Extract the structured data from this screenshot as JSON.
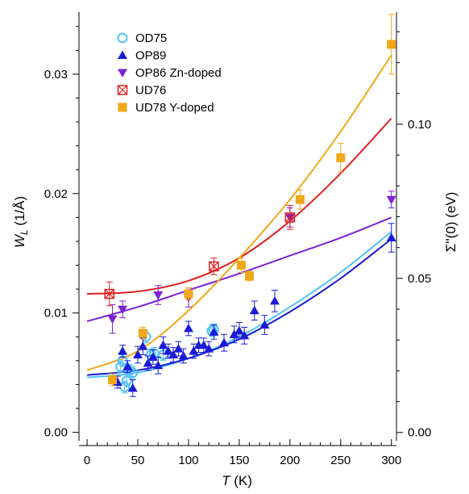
{
  "chart_data": {
    "type": "scatter",
    "xlabel": "T (K)",
    "ylabel": "W_L (1/Å)",
    "ylabel_right": "Σ''(0) (eV)",
    "xlim": [
      -8,
      305
    ],
    "ylim": [
      -0.0005,
      0.0352
    ],
    "ylim_right": [
      -0.0019,
      0.1364
    ],
    "xticks": [
      0,
      50,
      100,
      150,
      200,
      250,
      300
    ],
    "yticks": [
      0.0,
      0.01,
      0.02,
      0.03
    ],
    "yticks_right": [
      0.0,
      0.05,
      0.1
    ],
    "xtick_labels": [
      "0",
      "50",
      "100",
      "150",
      "200",
      "250",
      "300"
    ],
    "ytick_labels": [
      "0.00",
      "0.01",
      "0.02",
      "0.03"
    ],
    "ytick_labels_right": [
      "0.00",
      "0.05",
      "0.10"
    ],
    "grid": false,
    "legend_position": "top-left",
    "series": [
      {
        "name": "OD75",
        "marker": "circle-open",
        "color": "#4fc3f7",
        "x": [
          33,
          35,
          37,
          39,
          42,
          45,
          58,
          63,
          66,
          75,
          123,
          125
        ],
        "y": [
          0.0055,
          0.006,
          0.0038,
          0.0043,
          0.0052,
          0.005,
          0.008,
          0.0065,
          0.0066,
          0.0065,
          0.0085,
          0.0086
        ],
        "err": [
          0.0005,
          0.0005,
          0.0005,
          0.0005,
          0.0005,
          0.0005,
          0.0005,
          0.0005,
          0.0005,
          0.0005,
          0.0005,
          0.0005
        ]
      },
      {
        "name": "OP89",
        "marker": "triangle-up",
        "color": "#1a1ad6",
        "x": [
          30,
          35,
          40,
          45,
          50,
          55,
          60,
          65,
          70,
          75,
          80,
          85,
          90,
          95,
          100,
          105,
          110,
          115,
          120,
          125,
          135,
          145,
          150,
          155,
          165,
          175,
          185,
          300
        ],
        "y": [
          0.0042,
          0.0068,
          0.0055,
          0.0037,
          0.0065,
          0.0072,
          0.0058,
          0.0063,
          0.0056,
          0.0073,
          0.0068,
          0.0065,
          0.007,
          0.0064,
          0.0087,
          0.0068,
          0.0073,
          0.0073,
          0.007,
          0.0084,
          0.0075,
          0.0082,
          0.0085,
          0.0081,
          0.0102,
          0.009,
          0.011,
          0.0163
        ],
        "err": [
          0.0005,
          0.0005,
          0.0005,
          0.0007,
          0.0007,
          0.0007,
          0.0006,
          0.0006,
          0.0007,
          0.0007,
          0.0006,
          0.0006,
          0.0006,
          0.0006,
          0.0006,
          0.0006,
          0.0006,
          0.0006,
          0.0006,
          0.0006,
          0.0007,
          0.0007,
          0.0007,
          0.0007,
          0.0008,
          0.0008,
          0.0009,
          0.0012
        ]
      },
      {
        "name": "OP86 Zn-doped",
        "marker": "triangle-down",
        "color": "#7b22d4",
        "x": [
          25,
          35,
          70,
          100,
          200,
          300
        ],
        "y": [
          0.0095,
          0.0103,
          0.0115,
          0.0113,
          0.018,
          0.0195
        ],
        "err": [
          0.0012,
          0.0007,
          0.0008,
          0.0008,
          0.0008,
          0.0007
        ]
      },
      {
        "name": "UD76",
        "marker": "square-x",
        "color": "#e02020",
        "x": [
          22,
          125,
          200
        ],
        "y": [
          0.0116,
          0.0139,
          0.018
        ],
        "err": [
          0.001,
          0.0007,
          0.001
        ]
      },
      {
        "name": "UD78 Y-doped",
        "marker": "square",
        "color": "#f0a818",
        "x": [
          25,
          55,
          100,
          152,
          160,
          210,
          250,
          300
        ],
        "y": [
          0.0044,
          0.0083,
          0.0116,
          0.014,
          0.0131,
          0.0195,
          0.023,
          0.0325
        ],
        "err": [
          0.0005,
          0.0005,
          0.0005,
          0.0006,
          0.0004,
          0.0008,
          0.0012,
          0.0025
        ]
      }
    ],
    "fits": [
      {
        "series": "OD75",
        "color": "#4fc3f7",
        "x": [
          0,
          50,
          100,
          150,
          200,
          250,
          300
        ],
        "y": [
          0.0046,
          0.005,
          0.0062,
          0.008,
          0.0105,
          0.0134,
          0.0168
        ]
      },
      {
        "series": "OP89",
        "color": "#1a1ad6",
        "x": [
          0,
          50,
          100,
          150,
          200,
          250,
          300
        ],
        "y": [
          0.0048,
          0.0052,
          0.0062,
          0.0078,
          0.0101,
          0.0129,
          0.0162
        ]
      },
      {
        "series": "OP86 Zn-doped",
        "color": "#7b22d4",
        "x": [
          0,
          50,
          100,
          150,
          200,
          250,
          300
        ],
        "y": [
          0.0093,
          0.0105,
          0.0119,
          0.0133,
          0.0148,
          0.0163,
          0.018
        ]
      },
      {
        "series": "UD76",
        "color": "#e02020",
        "x": [
          0,
          50,
          100,
          150,
          200,
          250,
          300
        ],
        "y": [
          0.0116,
          0.0118,
          0.0127,
          0.0146,
          0.0177,
          0.0217,
          0.0263
        ]
      },
      {
        "series": "UD78 Y-doped",
        "color": "#f0a818",
        "x": [
          0,
          50,
          100,
          150,
          200,
          250,
          300
        ],
        "y": [
          0.0052,
          0.0068,
          0.0102,
          0.0146,
          0.0195,
          0.0252,
          0.0316
        ]
      }
    ]
  }
}
